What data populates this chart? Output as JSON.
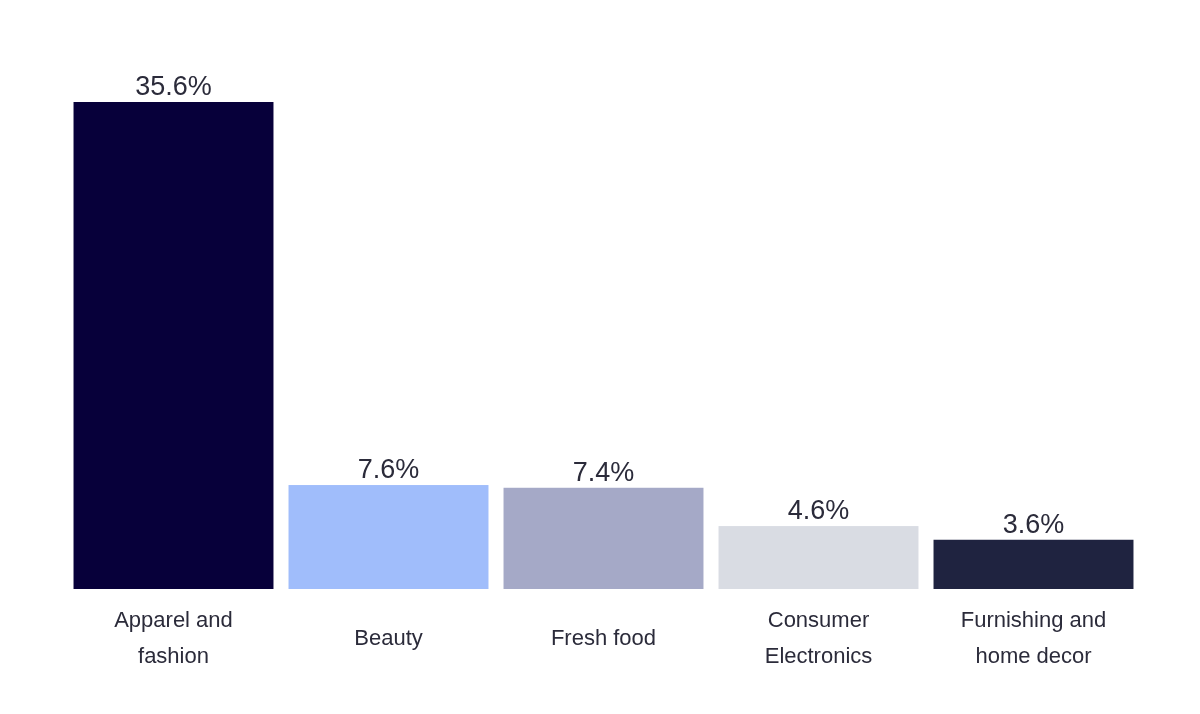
{
  "chart_data": {
    "type": "bar",
    "categories": [
      "Apparel and fashion",
      "Beauty",
      "Fresh food",
      "Consumer Electronics",
      "Furnishing and home decor"
    ],
    "values": [
      35.6,
      7.6,
      7.4,
      4.6,
      3.6
    ],
    "colors": [
      "#07003a",
      "#a0bdfb",
      "#a5a9c7",
      "#d9dce3",
      "#1f2340"
    ],
    "value_labels": [
      "35.6%",
      "7.6%",
      "7.4%",
      "4.6%",
      "3.6%"
    ]
  }
}
